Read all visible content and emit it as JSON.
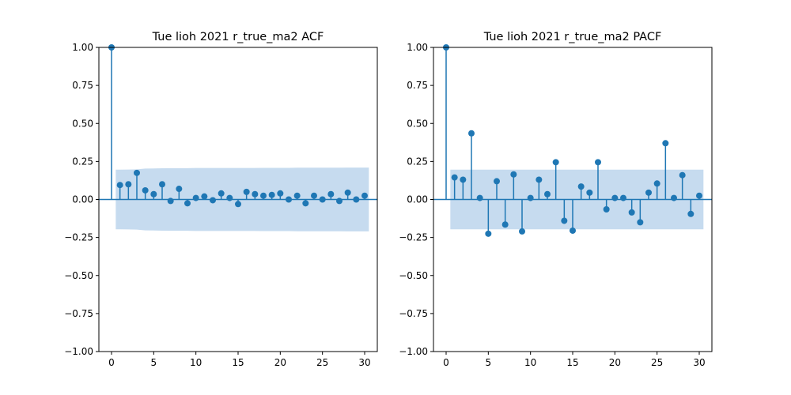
{
  "chart_data": [
    {
      "type": "stem",
      "title": "Tue lioh 2021 r_true_ma2 ACF",
      "xlabel": "",
      "ylabel": "",
      "xlim": [
        -1.5,
        31.5
      ],
      "ylim": [
        -1.0,
        1.0
      ],
      "xticks": [
        0,
        5,
        10,
        15,
        20,
        25,
        30
      ],
      "xtick_labels": [
        "0",
        "5",
        "10",
        "15",
        "20",
        "25",
        "30"
      ],
      "yticks": [
        1.0,
        0.75,
        0.5,
        0.25,
        0.0,
        -0.25,
        -0.5,
        -0.75,
        -1.0
      ],
      "ytick_labels": [
        "1.00",
        "0.75",
        "0.50",
        "0.25",
        "0.00",
        "−0.25",
        "−0.50",
        "−0.75",
        "−1.00"
      ],
      "grid": false,
      "series": [
        {
          "x": [
            0,
            1,
            2,
            3,
            4,
            5,
            6,
            7,
            8,
            9,
            10,
            11,
            12,
            13,
            14,
            15,
            16,
            17,
            18,
            19,
            20,
            21,
            22,
            23,
            24,
            25,
            26,
            27,
            28,
            29,
            30
          ],
          "values": [
            1.0,
            0.095,
            0.1,
            0.175,
            0.06,
            0.035,
            0.1,
            -0.01,
            0.07,
            -0.025,
            0.01,
            0.02,
            -0.005,
            0.04,
            0.01,
            -0.03,
            0.05,
            0.035,
            0.025,
            0.03,
            0.04,
            0.0,
            0.025,
            -0.025,
            0.025,
            0.0,
            0.035,
            -0.01,
            0.045,
            0.0,
            0.025
          ]
        }
      ],
      "confidence_band": {
        "x": [
          1,
          2,
          3,
          4,
          5,
          6,
          7,
          8,
          9,
          10,
          11,
          12,
          13,
          14,
          15,
          16,
          17,
          18,
          19,
          20,
          21,
          22,
          23,
          24,
          25,
          26,
          27,
          28,
          29,
          30
        ],
        "upper": [
          0.196,
          0.197,
          0.198,
          0.203,
          0.204,
          0.205,
          0.206,
          0.206,
          0.206,
          0.207,
          0.207,
          0.207,
          0.207,
          0.207,
          0.207,
          0.207,
          0.207,
          0.208,
          0.208,
          0.208,
          0.208,
          0.209,
          0.209,
          0.209,
          0.209,
          0.209,
          0.209,
          0.21,
          0.21,
          0.21
        ]
      },
      "colors": {
        "stem": "#1f77b4",
        "band": "#c6dbef",
        "zero_line": "#1f77b4"
      }
    },
    {
      "type": "stem",
      "title": "Tue lioh 2021 r_true_ma2 PACF",
      "xlabel": "",
      "ylabel": "",
      "xlim": [
        -1.5,
        31.5
      ],
      "ylim": [
        -1.0,
        1.0
      ],
      "xticks": [
        0,
        5,
        10,
        15,
        20,
        25,
        30
      ],
      "xtick_labels": [
        "0",
        "5",
        "10",
        "15",
        "20",
        "25",
        "30"
      ],
      "yticks": [
        1.0,
        0.75,
        0.5,
        0.25,
        0.0,
        -0.25,
        -0.5,
        -0.75,
        -1.0
      ],
      "ytick_labels": [
        "1.00",
        "0.75",
        "0.50",
        "0.25",
        "0.00",
        "−0.25",
        "−0.50",
        "−0.75",
        "−1.00"
      ],
      "grid": false,
      "series": [
        {
          "x": [
            0,
            1,
            2,
            3,
            4,
            5,
            6,
            7,
            8,
            9,
            10,
            11,
            12,
            13,
            14,
            15,
            16,
            17,
            18,
            19,
            20,
            21,
            22,
            23,
            24,
            25,
            26,
            27,
            28,
            29,
            30
          ],
          "values": [
            1.0,
            0.145,
            0.13,
            0.435,
            0.01,
            -0.225,
            0.12,
            -0.165,
            0.165,
            -0.21,
            0.01,
            0.13,
            0.035,
            0.245,
            -0.14,
            -0.205,
            0.085,
            0.045,
            0.245,
            -0.065,
            0.01,
            0.01,
            -0.085,
            -0.15,
            0.045,
            0.105,
            0.37,
            0.01,
            0.16,
            -0.095,
            0.025
          ]
        }
      ],
      "confidence_band": {
        "x": [
          1,
          2,
          3,
          4,
          5,
          6,
          7,
          8,
          9,
          10,
          11,
          12,
          13,
          14,
          15,
          16,
          17,
          18,
          19,
          20,
          21,
          22,
          23,
          24,
          25,
          26,
          27,
          28,
          29,
          30
        ],
        "upper": [
          0.196,
          0.196,
          0.196,
          0.196,
          0.196,
          0.196,
          0.196,
          0.196,
          0.196,
          0.196,
          0.196,
          0.196,
          0.196,
          0.196,
          0.196,
          0.196,
          0.196,
          0.196,
          0.196,
          0.196,
          0.196,
          0.196,
          0.196,
          0.196,
          0.196,
          0.196,
          0.196,
          0.196,
          0.196,
          0.196
        ]
      },
      "colors": {
        "stem": "#1f77b4",
        "band": "#c6dbef",
        "zero_line": "#1f77b4"
      }
    }
  ]
}
